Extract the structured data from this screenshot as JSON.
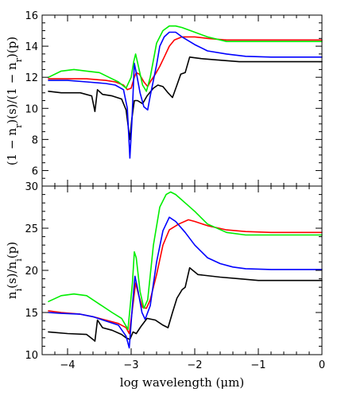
{
  "chart_data": [
    {
      "type": "line",
      "ylabel": "(1 − n_r)(s)/(1 − n_r)(p)",
      "xlim": [
        -4.4,
        0
      ],
      "ylim": [
        5,
        16
      ],
      "yticks": [
        6,
        8,
        10,
        12,
        14,
        16
      ],
      "series": [
        {
          "color": "#000000",
          "points": [
            [
              -4.3,
              11.1
            ],
            [
              -4.1,
              11.0
            ],
            [
              -3.8,
              11.0
            ],
            [
              -3.62,
              10.8
            ],
            [
              -3.57,
              9.8
            ],
            [
              -3.53,
              11.2
            ],
            [
              -3.45,
              10.9
            ],
            [
              -3.3,
              10.8
            ],
            [
              -3.15,
              10.6
            ],
            [
              -3.08,
              9.9
            ],
            [
              -3.02,
              8.0
            ],
            [
              -2.99,
              9.3
            ],
            [
              -2.95,
              10.5
            ],
            [
              -2.9,
              10.5
            ],
            [
              -2.82,
              10.3
            ],
            [
              -2.75,
              10.8
            ],
            [
              -2.65,
              11.3
            ],
            [
              -2.58,
              11.5
            ],
            [
              -2.5,
              11.4
            ],
            [
              -2.42,
              11.0
            ],
            [
              -2.35,
              10.7
            ],
            [
              -2.28,
              11.5
            ],
            [
              -2.22,
              12.2
            ],
            [
              -2.15,
              12.3
            ],
            [
              -2.08,
              13.3
            ],
            [
              -1.9,
              13.2
            ],
            [
              -1.6,
              13.1
            ],
            [
              -1.3,
              13.0
            ],
            [
              -1.0,
              13.0
            ],
            [
              -0.5,
              13.0
            ],
            [
              0.0,
              13.0
            ]
          ]
        },
        {
          "color": "#ff0000",
          "points": [
            [
              -4.3,
              11.9
            ],
            [
              -4.0,
              11.9
            ],
            [
              -3.7,
              11.9
            ],
            [
              -3.4,
              11.8
            ],
            [
              -3.25,
              11.7
            ],
            [
              -3.12,
              11.5
            ],
            [
              -3.06,
              11.2
            ],
            [
              -3.0,
              11.3
            ],
            [
              -2.95,
              12.0
            ],
            [
              -2.92,
              12.3
            ],
            [
              -2.87,
              12.2
            ],
            [
              -2.8,
              11.7
            ],
            [
              -2.74,
              11.4
            ],
            [
              -2.7,
              11.7
            ],
            [
              -2.62,
              12.2
            ],
            [
              -2.55,
              12.7
            ],
            [
              -2.48,
              13.3
            ],
            [
              -2.4,
              14.0
            ],
            [
              -2.32,
              14.4
            ],
            [
              -2.2,
              14.6
            ],
            [
              -2.0,
              14.6
            ],
            [
              -1.8,
              14.5
            ],
            [
              -1.5,
              14.4
            ],
            [
              -1.0,
              14.4
            ],
            [
              -0.5,
              14.4
            ],
            [
              0.0,
              14.4
            ]
          ]
        },
        {
          "color": "#0000ff",
          "points": [
            [
              -4.3,
              11.8
            ],
            [
              -4.0,
              11.8
            ],
            [
              -3.7,
              11.7
            ],
            [
              -3.4,
              11.6
            ],
            [
              -3.25,
              11.5
            ],
            [
              -3.12,
              11.2
            ],
            [
              -3.06,
              10.0
            ],
            [
              -3.02,
              6.8
            ],
            [
              -2.99,
              9.0
            ],
            [
              -2.95,
              12.9
            ],
            [
              -2.91,
              12.1
            ],
            [
              -2.86,
              11.0
            ],
            [
              -2.8,
              10.1
            ],
            [
              -2.74,
              9.9
            ],
            [
              -2.7,
              10.8
            ],
            [
              -2.6,
              12.8
            ],
            [
              -2.55,
              14.0
            ],
            [
              -2.48,
              14.6
            ],
            [
              -2.4,
              14.9
            ],
            [
              -2.3,
              14.9
            ],
            [
              -2.2,
              14.6
            ],
            [
              -2.0,
              14.1
            ],
            [
              -1.8,
              13.7
            ],
            [
              -1.5,
              13.5
            ],
            [
              -1.2,
              13.35
            ],
            [
              -0.8,
              13.3
            ],
            [
              -0.4,
              13.3
            ],
            [
              0.0,
              13.3
            ]
          ]
        },
        {
          "color": "#00ee00",
          "points": [
            [
              -4.3,
              12.0
            ],
            [
              -4.1,
              12.4
            ],
            [
              -3.9,
              12.5
            ],
            [
              -3.7,
              12.4
            ],
            [
              -3.5,
              12.3
            ],
            [
              -3.35,
              12.0
            ],
            [
              -3.2,
              11.7
            ],
            [
              -3.08,
              11.3
            ],
            [
              -3.0,
              12.0
            ],
            [
              -2.96,
              13.0
            ],
            [
              -2.93,
              13.5
            ],
            [
              -2.88,
              12.6
            ],
            [
              -2.82,
              11.5
            ],
            [
              -2.76,
              11.1
            ],
            [
              -2.7,
              12.0
            ],
            [
              -2.6,
              14.2
            ],
            [
              -2.5,
              15.0
            ],
            [
              -2.4,
              15.3
            ],
            [
              -2.3,
              15.3
            ],
            [
              -2.2,
              15.2
            ],
            [
              -2.0,
              14.9
            ],
            [
              -1.8,
              14.6
            ],
            [
              -1.5,
              14.3
            ],
            [
              -1.0,
              14.3
            ],
            [
              -0.5,
              14.3
            ],
            [
              0.0,
              14.3
            ]
          ]
        }
      ]
    },
    {
      "type": "line",
      "xlabel": "log wavelength (μm)",
      "ylabel": "n_i(s)/n_i(p)",
      "xlim": [
        -4.4,
        0
      ],
      "ylim": [
        10,
        30
      ],
      "xticks": [
        -4,
        -3,
        -2,
        -1,
        0
      ],
      "yticks": [
        10,
        15,
        20,
        25,
        30
      ],
      "series": [
        {
          "color": "#000000",
          "points": [
            [
              -4.3,
              12.7
            ],
            [
              -4.0,
              12.5
            ],
            [
              -3.7,
              12.4
            ],
            [
              -3.6,
              11.8
            ],
            [
              -3.57,
              11.6
            ],
            [
              -3.53,
              14.1
            ],
            [
              -3.45,
              13.2
            ],
            [
              -3.3,
              12.9
            ],
            [
              -3.15,
              12.4
            ],
            [
              -3.08,
              12.0
            ],
            [
              -3.02,
              11.8
            ],
            [
              -2.97,
              12.7
            ],
            [
              -2.92,
              12.5
            ],
            [
              -2.85,
              13.3
            ],
            [
              -2.75,
              14.3
            ],
            [
              -2.62,
              14.1
            ],
            [
              -2.5,
              13.5
            ],
            [
              -2.42,
              13.2
            ],
            [
              -2.35,
              15.0
            ],
            [
              -2.28,
              16.7
            ],
            [
              -2.2,
              17.7
            ],
            [
              -2.15,
              18.0
            ],
            [
              -2.08,
              20.3
            ],
            [
              -1.95,
              19.5
            ],
            [
              -1.6,
              19.2
            ],
            [
              -1.3,
              19.0
            ],
            [
              -1.0,
              18.8
            ],
            [
              -0.5,
              18.8
            ],
            [
              0.0,
              18.8
            ]
          ]
        },
        {
          "color": "#ff0000",
          "points": [
            [
              -4.3,
              15.2
            ],
            [
              -4.1,
              15.0
            ],
            [
              -3.8,
              14.8
            ],
            [
              -3.6,
              14.5
            ],
            [
              -3.4,
              14.1
            ],
            [
              -3.2,
              13.7
            ],
            [
              -3.08,
              13.2
            ],
            [
              -3.03,
              12.5
            ],
            [
              -2.97,
              16.0
            ],
            [
              -2.93,
              18.5
            ],
            [
              -2.88,
              17.0
            ],
            [
              -2.82,
              15.6
            ],
            [
              -2.76,
              15.5
            ],
            [
              -2.7,
              16.5
            ],
            [
              -2.6,
              19.5
            ],
            [
              -2.5,
              23.0
            ],
            [
              -2.4,
              24.8
            ],
            [
              -2.25,
              25.5
            ],
            [
              -2.1,
              26.0
            ],
            [
              -2.0,
              25.8
            ],
            [
              -1.8,
              25.3
            ],
            [
              -1.5,
              24.8
            ],
            [
              -1.2,
              24.6
            ],
            [
              -0.8,
              24.5
            ],
            [
              -0.4,
              24.5
            ],
            [
              0.0,
              24.5
            ]
          ]
        },
        {
          "color": "#0000ff",
          "points": [
            [
              -4.3,
              15.0
            ],
            [
              -4.1,
              14.9
            ],
            [
              -3.8,
              14.8
            ],
            [
              -3.6,
              14.5
            ],
            [
              -3.4,
              14.0
            ],
            [
              -3.2,
              13.5
            ],
            [
              -3.08,
              12.2
            ],
            [
              -3.03,
              10.8
            ],
            [
              -2.98,
              15.8
            ],
            [
              -2.94,
              19.3
            ],
            [
              -2.89,
              17.5
            ],
            [
              -2.83,
              15.0
            ],
            [
              -2.78,
              14.2
            ],
            [
              -2.7,
              15.8
            ],
            [
              -2.6,
              21.0
            ],
            [
              -2.5,
              24.7
            ],
            [
              -2.4,
              26.3
            ],
            [
              -2.3,
              25.8
            ],
            [
              -2.15,
              24.5
            ],
            [
              -2.0,
              23.0
            ],
            [
              -1.8,
              21.5
            ],
            [
              -1.6,
              20.8
            ],
            [
              -1.4,
              20.4
            ],
            [
              -1.2,
              20.2
            ],
            [
              -0.8,
              20.1
            ],
            [
              -0.4,
              20.1
            ],
            [
              0.0,
              20.1
            ]
          ]
        },
        {
          "color": "#00ee00",
          "points": [
            [
              -4.3,
              16.3
            ],
            [
              -4.1,
              17.0
            ],
            [
              -3.9,
              17.2
            ],
            [
              -3.7,
              17.0
            ],
            [
              -3.5,
              16.0
            ],
            [
              -3.3,
              15.0
            ],
            [
              -3.15,
              14.3
            ],
            [
              -3.05,
              13.0
            ],
            [
              -2.98,
              18.5
            ],
            [
              -2.95,
              22.2
            ],
            [
              -2.92,
              21.5
            ],
            [
              -2.86,
              17.5
            ],
            [
              -2.8,
              15.5
            ],
            [
              -2.74,
              16.5
            ],
            [
              -2.65,
              23.0
            ],
            [
              -2.55,
              27.5
            ],
            [
              -2.45,
              29.0
            ],
            [
              -2.38,
              29.3
            ],
            [
              -2.3,
              29.0
            ],
            [
              -2.15,
              28.0
            ],
            [
              -2.0,
              27.0
            ],
            [
              -1.8,
              25.5
            ],
            [
              -1.5,
              24.5
            ],
            [
              -1.2,
              24.2
            ],
            [
              -0.8,
              24.2
            ],
            [
              -0.4,
              24.2
            ],
            [
              0.0,
              24.2
            ]
          ]
        }
      ]
    }
  ]
}
